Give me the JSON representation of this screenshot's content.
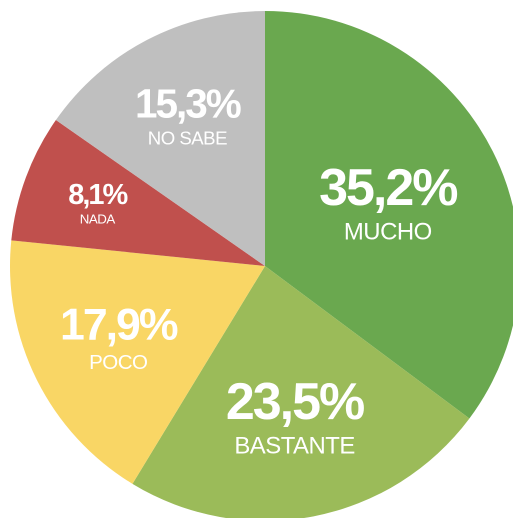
{
  "chart_data": {
    "type": "pie",
    "categories": [
      "MUCHO",
      "BASTANTE",
      "POCO",
      "NADA",
      "NO SABE"
    ],
    "values": [
      35.2,
      23.5,
      17.9,
      8.1,
      15.3
    ],
    "value_labels": [
      "35,2%",
      "23,5%",
      "17,9%",
      "8,1%",
      "15,3%"
    ],
    "colors": [
      "#6aa84f",
      "#9bbb59",
      "#f9d665",
      "#c0504d",
      "#bfbfbf"
    ]
  }
}
